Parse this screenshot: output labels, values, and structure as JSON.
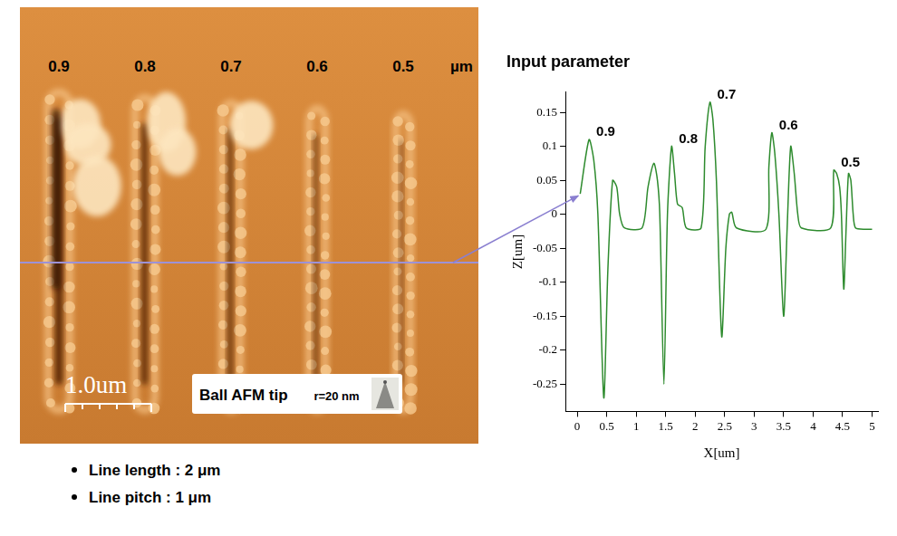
{
  "image_panel": {
    "line_labels": [
      "0.9",
      "0.8",
      "0.7",
      "0.6",
      "0.5"
    ],
    "unit": "µm",
    "scale_bar": "1.0um",
    "tip_label": "Ball AFM tip",
    "tip_radius": "r=20 nm"
  },
  "chart_data": {
    "type": "line",
    "title": "Input parameter",
    "x_label": "X[um]",
    "y_label": "Z[um]",
    "x": [
      0.05,
      0.2,
      0.28,
      0.35,
      0.45,
      0.52,
      0.6,
      0.67,
      0.72,
      0.8,
      1.1,
      1.2,
      1.3,
      1.36,
      1.4,
      1.47,
      1.53,
      1.6,
      1.65,
      1.7,
      1.78,
      1.85,
      2.1,
      2.17,
      2.25,
      2.3,
      2.36,
      2.45,
      2.52,
      2.58,
      2.62,
      2.7,
      3.2,
      3.25,
      3.3,
      3.35,
      3.42,
      3.5,
      3.56,
      3.62,
      3.68,
      3.74,
      3.8,
      4.3,
      4.35,
      4.4,
      4.45,
      4.48,
      4.52,
      4.56,
      4.6,
      4.64,
      4.68,
      4.72,
      4.9,
      5.0
    ],
    "values": [
      0.03,
      0.11,
      0.08,
      0.0,
      -0.27,
      -0.08,
      0.05,
      0.04,
      0.0,
      -0.02,
      -0.02,
      0.04,
      0.075,
      0.05,
      0.0,
      -0.25,
      0.0,
      0.1,
      0.06,
      0.015,
      0.01,
      -0.02,
      -0.02,
      0.1,
      0.165,
      0.14,
      0.05,
      -0.18,
      -0.05,
      0.0,
      0.003,
      -0.02,
      -0.022,
      0.07,
      0.12,
      0.09,
      0.0,
      -0.15,
      -0.02,
      0.1,
      0.06,
      0.0,
      -0.02,
      -0.02,
      0.065,
      0.06,
      0.04,
      0.0,
      -0.11,
      -0.02,
      0.06,
      0.05,
      0.0,
      -0.02,
      -0.022,
      -0.022
    ],
    "color": "#2e8b2e",
    "xlim": [
      -0.2,
      5.1
    ],
    "xticks": [
      0,
      0.5,
      1,
      1.5,
      2,
      2.5,
      3,
      3.5,
      4,
      4.5,
      5
    ],
    "ylim": [
      -0.29,
      0.18
    ],
    "yticks": [
      -0.25,
      -0.2,
      -0.15,
      -0.1,
      -0.05,
      0,
      0.05,
      0.1,
      0.15
    ],
    "grid": false,
    "annotations": [
      "0.9",
      "0.8",
      "0.7",
      "0.6",
      "0.5"
    ]
  },
  "bullets": [
    "Line length : 2 μm",
    "Line pitch : 1 μm"
  ]
}
